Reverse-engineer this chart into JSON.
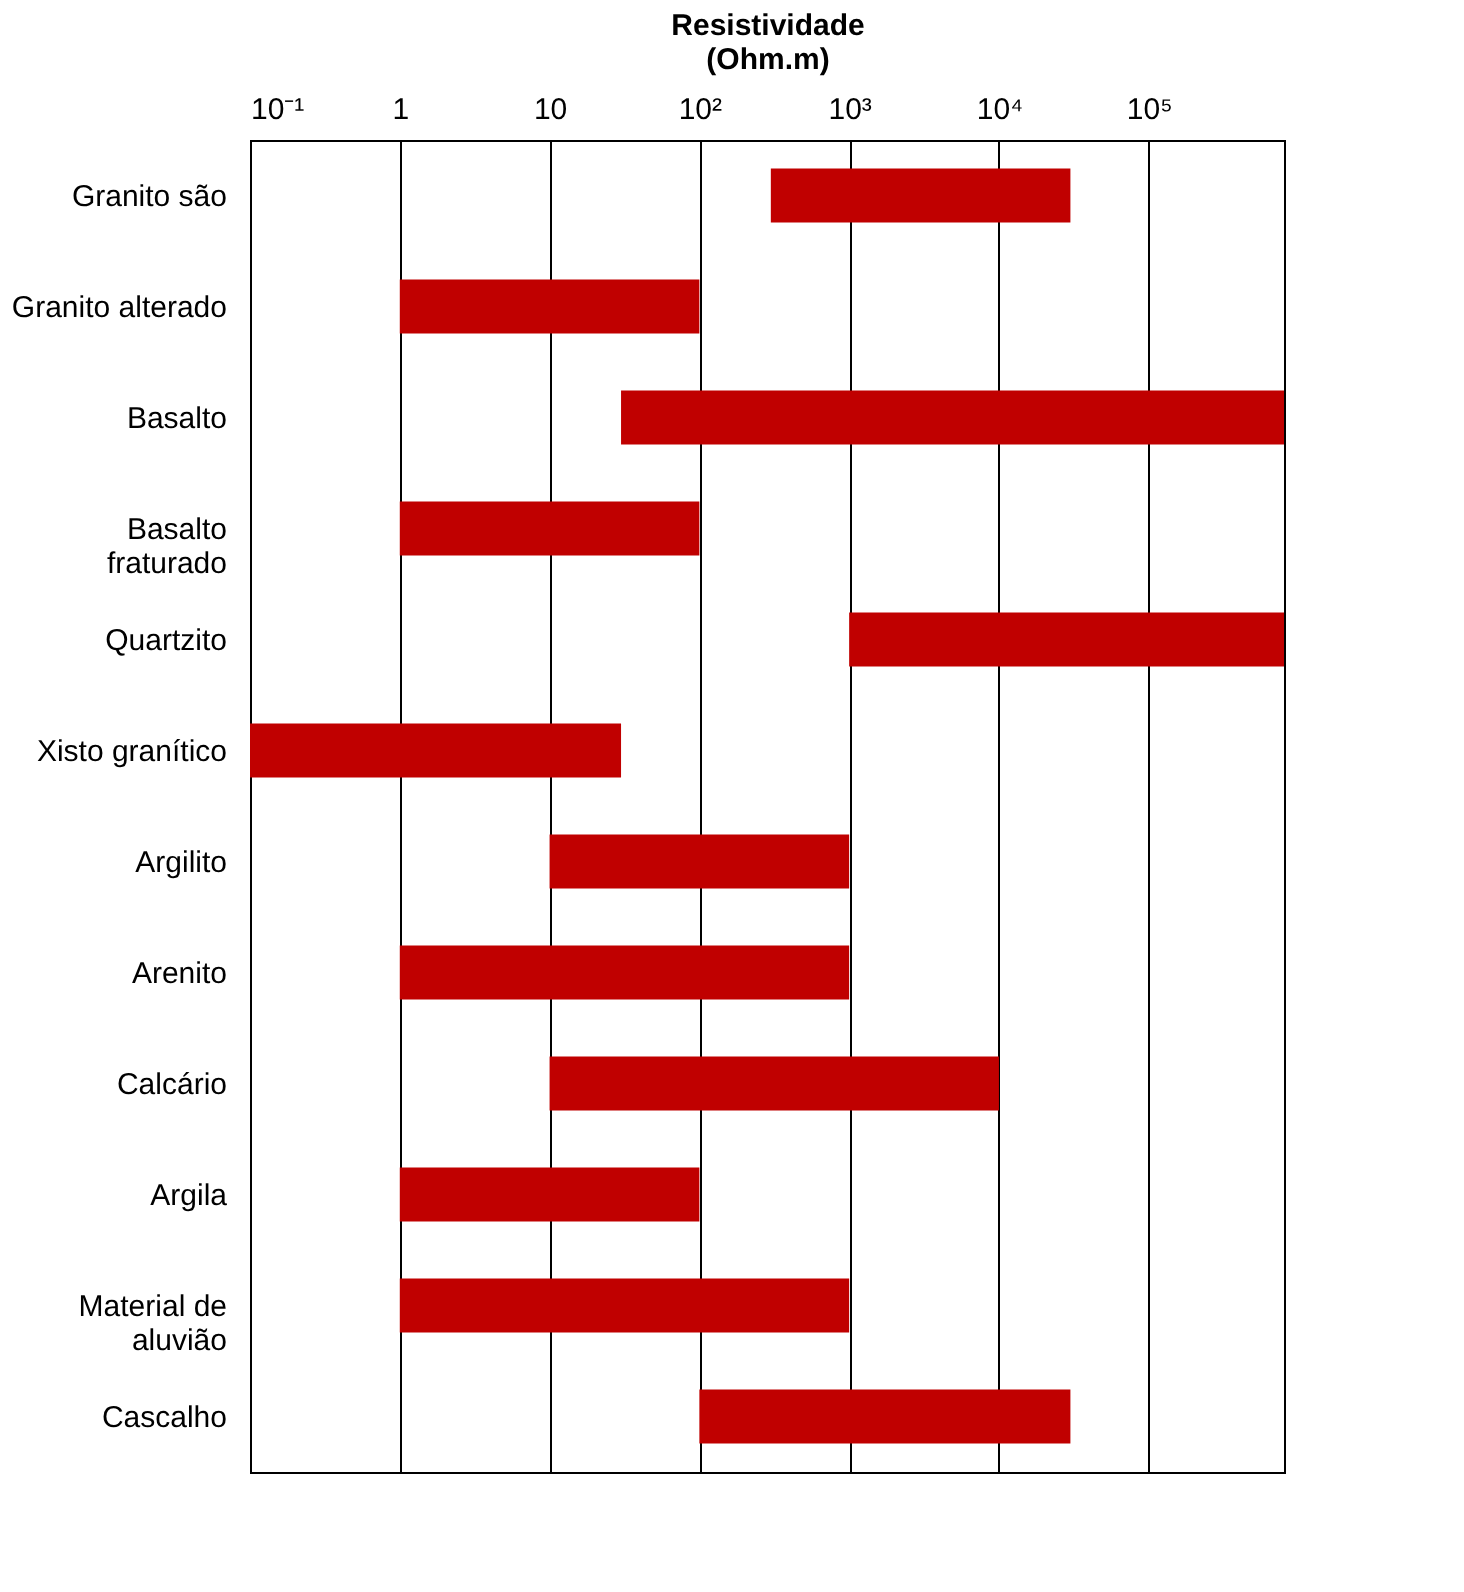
{
  "chart_data": {
    "type": "bar",
    "orientation": "horizontal",
    "log": "x",
    "xlabel": "Resistividade\n(Ohm.m)",
    "categories": [
      "Granito são",
      "Granito alterado",
      "Basalto",
      "Basalto\nfraturado",
      "Quartzito",
      "Xisto granítico",
      "Argilito",
      "Arenito",
      "Calcário",
      "Argila",
      "Material de\naluvião",
      "Cascalho"
    ],
    "base": [
      300,
      1,
      30,
      1,
      1000,
      0.1,
      10,
      1,
      10,
      1,
      1,
      100
    ],
    "values": [
      29700,
      99,
      799970,
      99,
      799000,
      29.9,
      990,
      999,
      9990,
      99,
      999,
      29900
    ],
    "color": "#c00000",
    "xlim": [
      0.1,
      800000
    ],
    "xticks": [
      {
        "value": 0.1,
        "label": "10⁻¹"
      },
      1,
      10,
      {
        "value": 100,
        "label": "10²"
      },
      {
        "value": 1000,
        "label": "10³"
      },
      {
        "value": 10000,
        "label": "10⁴"
      },
      {
        "value": 100000,
        "label": "10⁵"
      }
    ],
    "grid": "x"
  }
}
